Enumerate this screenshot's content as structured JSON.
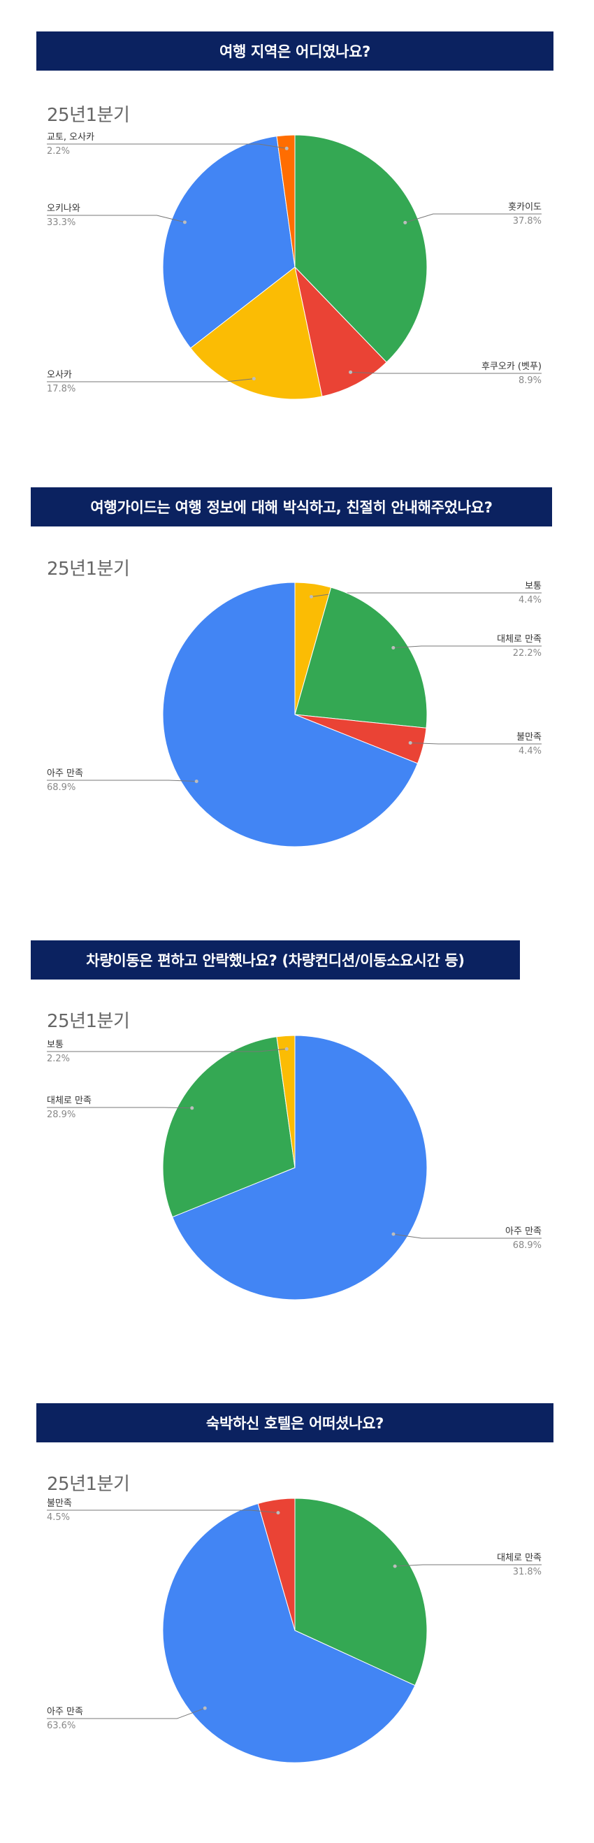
{
  "colors": {
    "banner_bg": "#0b2260",
    "blue": "#4285f4",
    "red": "#ea4335",
    "yellow": "#fbbc04",
    "green": "#34a853",
    "orange": "#ff6d01"
  },
  "chart_data": [
    {
      "type": "pie",
      "title": "여행 지역은 어디였나요?",
      "subtitle": "25년1분기",
      "slices": [
        {
          "label": "홋카이도",
          "value": 37.8,
          "display": "37.8%",
          "color": "#34a853"
        },
        {
          "label": "후쿠오카 (벳푸)",
          "value": 8.9,
          "display": "8.9%",
          "color": "#ea4335"
        },
        {
          "label": "오사카",
          "value": 17.8,
          "display": "17.8%",
          "color": "#fbbc04"
        },
        {
          "label": "오키나와",
          "value": 33.3,
          "display": "33.3%",
          "color": "#4285f4"
        },
        {
          "label": "교토, 오사카",
          "value": 2.2,
          "display": "2.2%",
          "color": "#ff6d01"
        }
      ]
    },
    {
      "type": "pie",
      "title": "여행가이드는 여행 정보에 대해 박식하고, 친절히 안내해주었나요?",
      "subtitle": "25년1분기",
      "slices": [
        {
          "label": "보통",
          "value": 4.4,
          "display": "4.4%",
          "color": "#fbbc04"
        },
        {
          "label": "대체로 만족",
          "value": 22.2,
          "display": "22.2%",
          "color": "#34a853"
        },
        {
          "label": "불만족",
          "value": 4.4,
          "display": "4.4%",
          "color": "#ea4335"
        },
        {
          "label": "아주 만족",
          "value": 68.9,
          "display": "68.9%",
          "color": "#4285f4"
        }
      ]
    },
    {
      "type": "pie",
      "title": "차량이동은 편하고 안락했나요? (차량컨디션/이동소요시간 등)",
      "subtitle": "25년1분기",
      "slices": [
        {
          "label": "아주 만족",
          "value": 68.9,
          "display": "68.9%",
          "color": "#4285f4"
        },
        {
          "label": "대체로 만족",
          "value": 28.9,
          "display": "28.9%",
          "color": "#34a853"
        },
        {
          "label": "보통",
          "value": 2.2,
          "display": "2.2%",
          "color": "#fbbc04"
        }
      ]
    },
    {
      "type": "pie",
      "title": "숙박하신 호텔은 어떠셨나요?",
      "subtitle": "25년1분기",
      "slices": [
        {
          "label": "대체로 만족",
          "value": 31.8,
          "display": "31.8%",
          "color": "#34a853"
        },
        {
          "label": "아주 만족",
          "value": 63.6,
          "display": "63.6%",
          "color": "#4285f4"
        },
        {
          "label": "불만족",
          "value": 4.5,
          "display": "4.5%",
          "color": "#ea4335"
        }
      ]
    }
  ]
}
